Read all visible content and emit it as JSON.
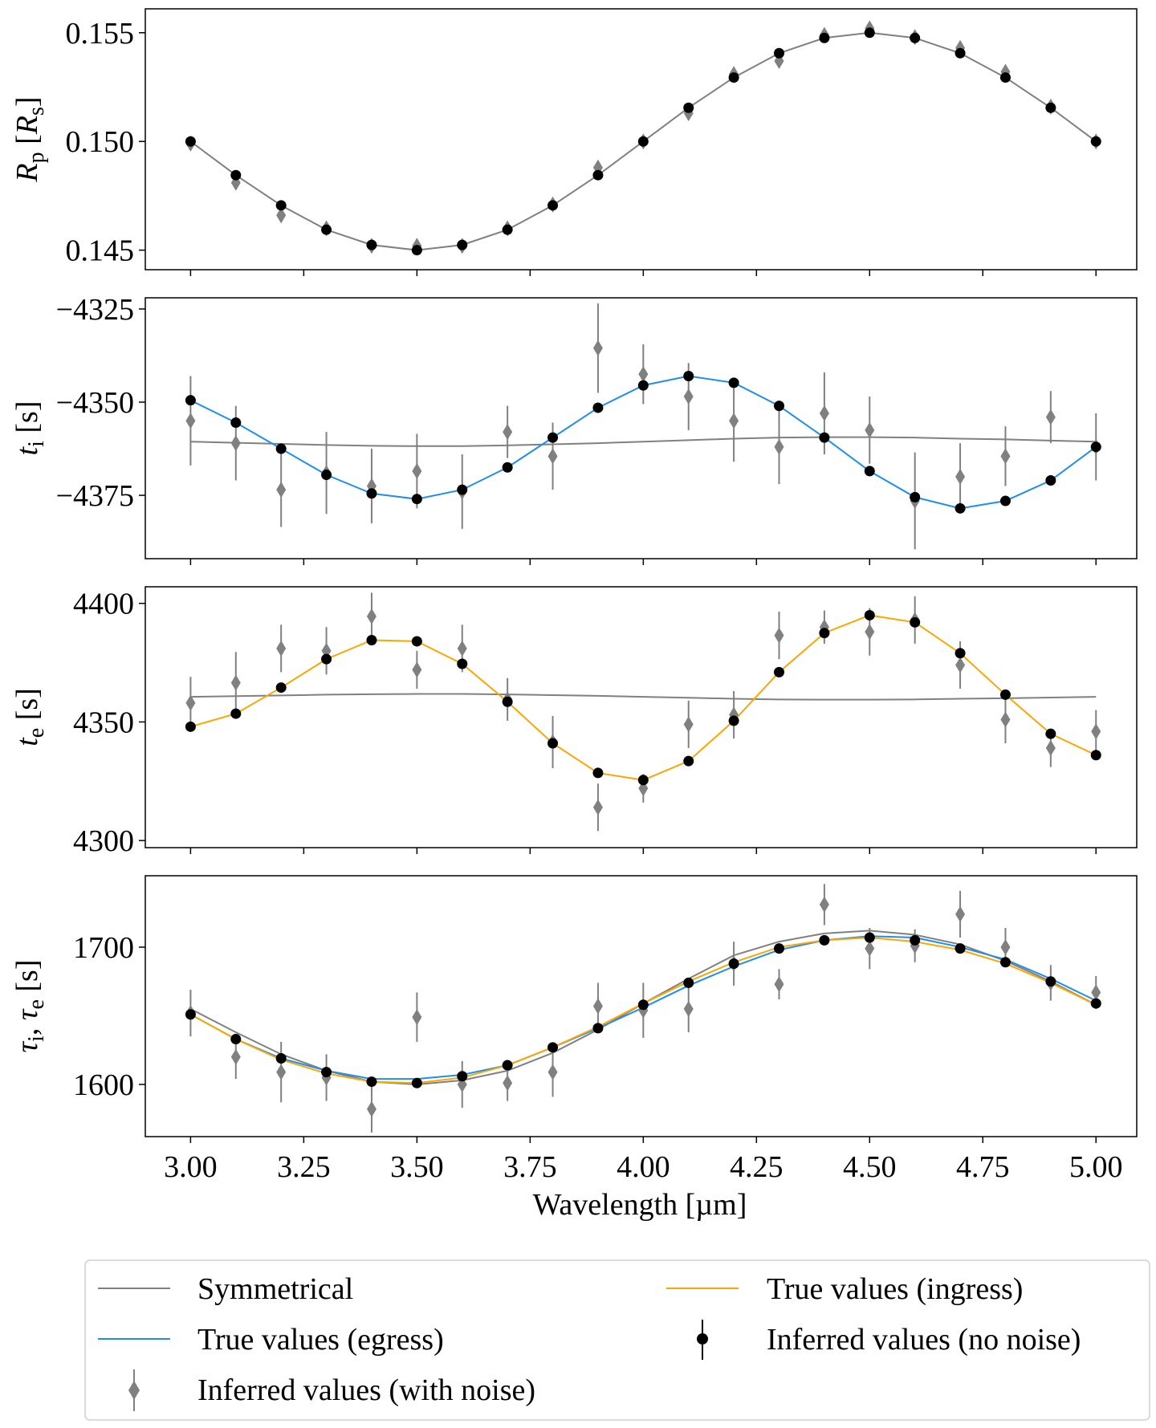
{
  "chart_data": {
    "type": "line",
    "shared_x": {
      "label": "Wavelength [µm]",
      "range": [
        2.9,
        5.09
      ],
      "ticks": [
        3.0,
        3.25,
        3.5,
        3.75,
        4.0,
        4.25,
        4.5,
        4.75,
        5.0
      ],
      "tick_labels": [
        "3.00",
        "3.25",
        "3.50",
        "3.75",
        "4.00",
        "4.25",
        "4.50",
        "4.75",
        "5.00"
      ]
    },
    "wavelengths": [
      3.0,
      3.1,
      3.2,
      3.3,
      3.4,
      3.5,
      3.6,
      3.7,
      3.8,
      3.9,
      4.0,
      4.1,
      4.2,
      4.3,
      4.4,
      4.5,
      4.6,
      4.7,
      4.8,
      4.9,
      5.0
    ],
    "legend": {
      "location": "bottom, below plots",
      "entries": [
        "Symmetrical",
        "True values (ingress)",
        "True values (egress)",
        "Inferred values (no noise)",
        "Inferred values (with noise)"
      ]
    },
    "colors": {
      "symmetrical": "#808080",
      "egress": "#1f8ef1",
      "ingress": "#ffa500",
      "no_noise": "#000000",
      "with_noise": "#808080"
    },
    "panels": [
      {
        "id": "rp",
        "ylabel_main": "R",
        "ylabel_sub": "p",
        "ylabel_rest": " [",
        "ylabel_unit": "R",
        "ylabel_unit_sub": "s",
        "ylabel_close": "]",
        "ylim": [
          0.1441,
          0.1561
        ],
        "yticks": [
          0.145,
          0.15,
          0.155
        ],
        "ytick_labels": [
          "0.145",
          "0.150",
          "0.155"
        ],
        "lines": [
          {
            "name": "Symmetrical",
            "color": "#808080",
            "values": [
              0.15,
              0.14845,
              0.14706,
              0.14594,
              0.14524,
              0.145,
              0.14524,
              0.14594,
              0.14706,
              0.14845,
              0.15,
              0.15155,
              0.15294,
              0.15406,
              0.15476,
              0.155,
              0.15476,
              0.15406,
              0.15294,
              0.15155,
              0.15
            ]
          }
        ],
        "no_noise": [
          0.15,
          0.14845,
          0.14706,
          0.14594,
          0.14524,
          0.145,
          0.14524,
          0.14594,
          0.14706,
          0.14845,
          0.15,
          0.15155,
          0.15294,
          0.15406,
          0.15476,
          0.155,
          0.15476,
          0.15406,
          0.15294,
          0.15155,
          0.15
        ],
        "with_noise": [
          0.1499,
          0.1481,
          0.1466,
          0.146,
          0.1452,
          0.1452,
          0.1452,
          0.146,
          0.1471,
          0.1488,
          0.15,
          0.1513,
          0.1531,
          0.1537,
          0.1549,
          0.1552,
          0.1548,
          0.1543,
          0.1532,
          0.1516,
          0.15
        ],
        "with_noise_err": [
          0.0001,
          0.0001,
          0.0001,
          0.0001,
          0.0001,
          0.0001,
          0.0001,
          0.0001,
          0.0001,
          0.0001,
          0.0001,
          0.0001,
          0.0001,
          0.0001,
          0.0001,
          0.0001,
          0.0001,
          0.0001,
          0.0001,
          0.0001,
          0.0001
        ]
      },
      {
        "id": "ti",
        "ylabel_main": "t",
        "ylabel_sub": "i",
        "ylabel_rest": " [s]",
        "ylim": [
          -4392,
          -4322
        ],
        "yticks": [
          -4375,
          -4350,
          -4325
        ],
        "ytick_labels": [
          "−4375",
          "−4350",
          "−4325"
        ],
        "lines": [
          {
            "name": "Symmetrical",
            "color": "#808080",
            "values": [
              -4360.6,
              -4360.9,
              -4361.2,
              -4361.5,
              -4361.7,
              -4361.8,
              -4361.8,
              -4361.6,
              -4361.3,
              -4361.0,
              -4360.6,
              -4360.2,
              -4359.8,
              -4359.5,
              -4359.4,
              -4359.4,
              -4359.5,
              -4359.8,
              -4360.0,
              -4360.3,
              -4360.6
            ]
          },
          {
            "name": "True values (egress)",
            "color": "#1f8ef1",
            "values": [
              -4349.5,
              -4355.5,
              -4362.5,
              -4369.5,
              -4374.5,
              -4376.0,
              -4373.5,
              -4367.5,
              -4359.5,
              -4351.5,
              -4345.5,
              -4343.0,
              -4344.8,
              -4351.0,
              -4359.5,
              -4368.5,
              -4375.5,
              -4378.5,
              -4376.5,
              -4371.0,
              -4362.0
            ]
          }
        ],
        "no_noise": [
          -4349.5,
          -4355.5,
          -4362.5,
          -4369.5,
          -4374.5,
          -4376.0,
          -4373.5,
          -4367.5,
          -4359.5,
          -4351.5,
          -4345.5,
          -4343.0,
          -4344.8,
          -4351.0,
          -4359.5,
          -4368.5,
          -4375.5,
          -4378.5,
          -4376.5,
          -4371.0,
          -4362.0
        ],
        "with_noise": [
          -4355,
          -4361,
          -4373.5,
          -4369,
          -4372.5,
          -4368.5,
          -4374,
          -4358,
          -4364.5,
          -4335.5,
          -4342.5,
          -4348.5,
          -4355,
          -4362,
          -4353,
          -4357.5,
          -4376.5,
          -4370,
          -4364.5,
          -4354,
          -4362
        ],
        "with_noise_err": [
          12,
          10,
          10,
          11,
          10,
          10,
          10,
          7,
          9,
          12,
          8,
          9,
          11,
          10,
          11,
          9,
          13,
          9,
          8,
          7,
          9
        ]
      },
      {
        "id": "te",
        "ylabel_main": "t",
        "ylabel_sub": "e",
        "ylabel_rest": " [s]",
        "ylim": [
          4297,
          4407
        ],
        "yticks": [
          4300,
          4350,
          4400
        ],
        "ytick_labels": [
          "4300",
          "4350",
          "4400"
        ],
        "lines": [
          {
            "name": "Symmetrical",
            "color": "#808080",
            "values": [
              4360.6,
              4360.9,
              4361.2,
              4361.5,
              4361.7,
              4361.8,
              4361.8,
              4361.6,
              4361.3,
              4361.0,
              4360.6,
              4360.2,
              4359.8,
              4359.5,
              4359.4,
              4359.4,
              4359.5,
              4359.8,
              4360.0,
              4360.3,
              4360.6
            ]
          },
          {
            "name": "True values (ingress)",
            "color": "#ffa500",
            "values": [
              4348.0,
              4353.5,
              4364.5,
              4376.5,
              4384.5,
              4384.0,
              4374.5,
              4358.5,
              4341.0,
              4328.5,
              4325.5,
              4333.5,
              4350.5,
              4371.0,
              4387.5,
              4395.0,
              4392.0,
              4379.0,
              4361.5,
              4345.0,
              4336.0
            ]
          }
        ],
        "no_noise": [
          4348.0,
          4353.5,
          4364.5,
          4376.5,
          4384.5,
          4384.0,
          4374.5,
          4358.5,
          4341.0,
          4328.5,
          4325.5,
          4333.5,
          4350.5,
          4371.0,
          4387.5,
          4395.0,
          4392.0,
          4379.0,
          4361.5,
          4345.0,
          4336.0
        ],
        "with_noise": [
          4358,
          4366.5,
          4381,
          4380,
          4394.5,
          4372,
          4381,
          4359.5,
          4341.5,
          4314,
          4322,
          4349,
          4353,
          4386.5,
          4390,
          4388,
          4393,
          4374,
          4351,
          4339,
          4346
        ],
        "with_noise_err": [
          11,
          13,
          10,
          10,
          10,
          8,
          10,
          9,
          11,
          10,
          6,
          10,
          10,
          10,
          7,
          10,
          10,
          10,
          10,
          8,
          9
        ]
      },
      {
        "id": "tau",
        "ylabel_main": "τ",
        "ylabel_sub": "i",
        "ylabel_rest": ", ",
        "ylabel_main2": "τ",
        "ylabel_sub2": "e",
        "ylabel_rest2": " [s]",
        "ylim": [
          1562,
          1752
        ],
        "yticks": [
          1600,
          1700
        ],
        "ytick_labels": [
          "1600",
          "1700"
        ],
        "lines": [
          {
            "name": "Symmetrical",
            "color": "#808080",
            "values": [
              1655,
              1638,
              1622,
              1610,
              1602,
              1600,
              1603,
              1610,
              1623,
              1640,
              1659,
              1677,
              1694,
              1704,
              1710,
              1712,
              1709,
              1702,
              1690,
              1675,
              1658
            ]
          },
          {
            "name": "True values (egress)",
            "color": "#1f8ef1",
            "values": [
              1651,
              1633,
              1619,
              1610,
              1604,
              1604,
              1607,
              1614,
              1627,
              1641,
              1656,
              1672,
              1686,
              1698,
              1705,
              1708,
              1707,
              1700,
              1691,
              1677,
              1661
            ]
          },
          {
            "name": "True values (ingress)",
            "color": "#ffa500",
            "values": [
              1651,
              1633,
              1618,
              1608,
              1602,
              1601,
              1605,
              1614,
              1627,
              1642,
              1659,
              1675,
              1689,
              1700,
              1705,
              1707,
              1704,
              1698,
              1688,
              1674,
              1658
            ]
          }
        ],
        "no_noise": [
          1651,
          1633,
          1619,
          1609,
          1602,
          1601,
          1606,
          1614,
          1627,
          1641,
          1658,
          1674,
          1688,
          1699,
          1705,
          1707,
          1705,
          1699,
          1689,
          1675,
          1659
        ],
        "with_noise": [
          1652,
          1620,
          1609,
          1605,
          1582,
          1649,
          1600,
          1601,
          1609,
          1657,
          1654,
          1655,
          1688,
          1673,
          1731,
          1699,
          1701,
          1724,
          1700,
          1674,
          1667
        ],
        "with_noise_err": [
          17,
          16,
          22,
          17,
          17,
          18,
          17,
          13,
          18,
          17,
          20,
          17,
          16,
          11,
          15,
          15,
          12,
          17,
          14,
          13,
          12
        ]
      }
    ]
  }
}
